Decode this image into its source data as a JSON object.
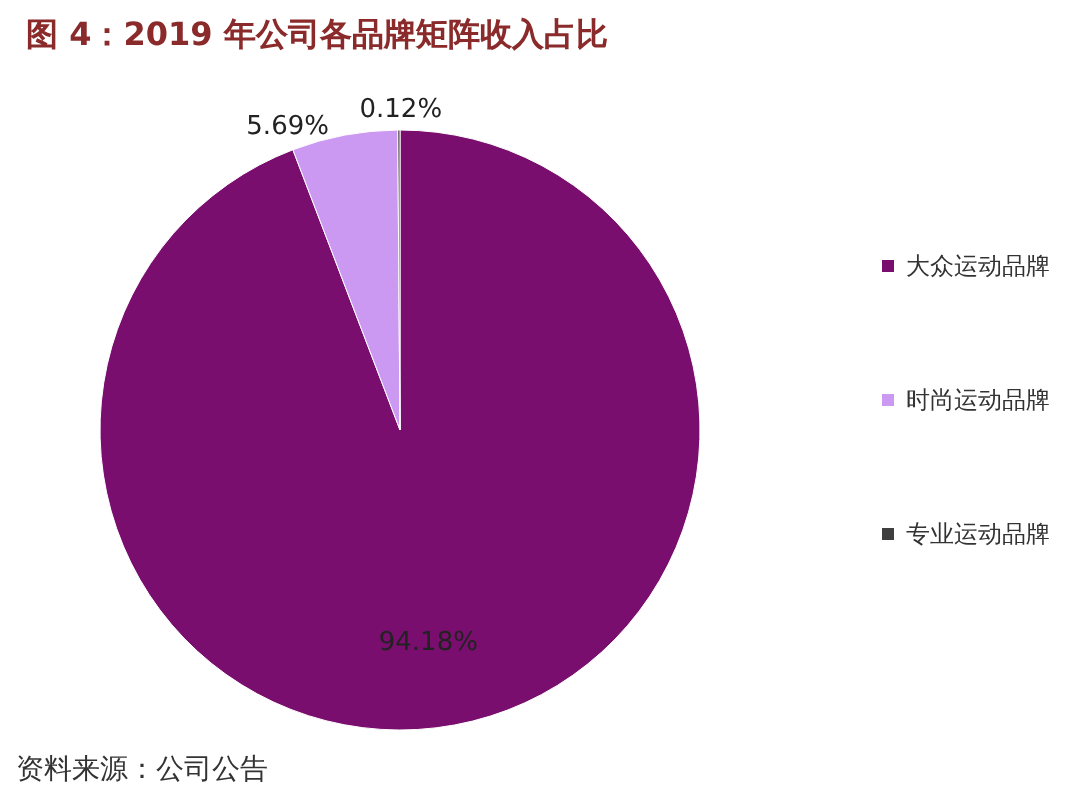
{
  "chart_data": {
    "type": "pie",
    "title": "图 4：2019 年公司各品牌矩阵收入占比",
    "categories": [
      "大众运动品牌",
      "时尚运动品牌",
      "专业运动品牌"
    ],
    "values": [
      94.18,
      5.69,
      0.12
    ],
    "value_labels": [
      "94.18%",
      "5.69%",
      "0.12%"
    ],
    "colors": [
      "#7a0e6e",
      "#cc99f2",
      "#3f3f3f"
    ],
    "legend": "right",
    "annotations": [
      "资料来源：公司公告"
    ]
  }
}
